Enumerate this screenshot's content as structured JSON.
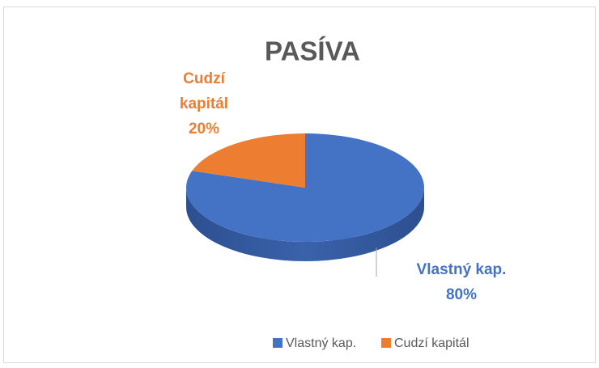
{
  "chart_data": {
    "type": "pie",
    "title": "PASÍVA",
    "categories": [
      "Vlastný kap.",
      "Cudzí kapitál"
    ],
    "values": [
      80,
      20
    ],
    "value_labels": [
      "80%",
      "20%"
    ],
    "colors": [
      "#4472c4",
      "#ed7d31"
    ],
    "legend": "bottom"
  }
}
